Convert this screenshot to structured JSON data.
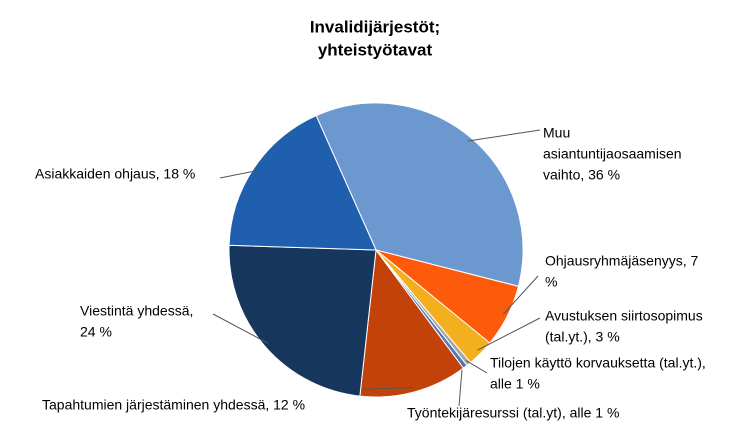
{
  "chart_data": {
    "type": "pie",
    "title": [
      "Invalidijärjestöt;",
      "yhteistyötavat"
    ],
    "labels": [
      [
        "Muu",
        "asiantuntijaosaamisen",
        "vaihto, 36 %"
      ],
      [
        "Ohjausryhmäjäsenyys, 7",
        "%"
      ],
      [
        "Avustuksen siirtosopimus",
        "(tal.yt.), 3 %"
      ],
      [
        "Tilojen käyttö korvauksetta (tal.yt.),",
        "alle 1 %"
      ],
      [
        "Työntekijäresurssi (tal.yt), alle 1 %"
      ],
      [
        "Tapahtumien järjestäminen yhdessä, 12 %"
      ],
      [
        "Viestintä yhdessä,",
        "24 %"
      ],
      [
        "Asiakkaiden ohjaus, 18 %"
      ]
    ],
    "values": [
      36,
      7,
      3,
      0.5,
      0.5,
      12,
      24,
      18
    ],
    "colors": [
      "#6b98cf",
      "#fd5b0b",
      "#f3af1e",
      "#a6a6a6",
      "#4f79b0",
      "#c2420a",
      "#17365d",
      "#1f5fad"
    ]
  }
}
